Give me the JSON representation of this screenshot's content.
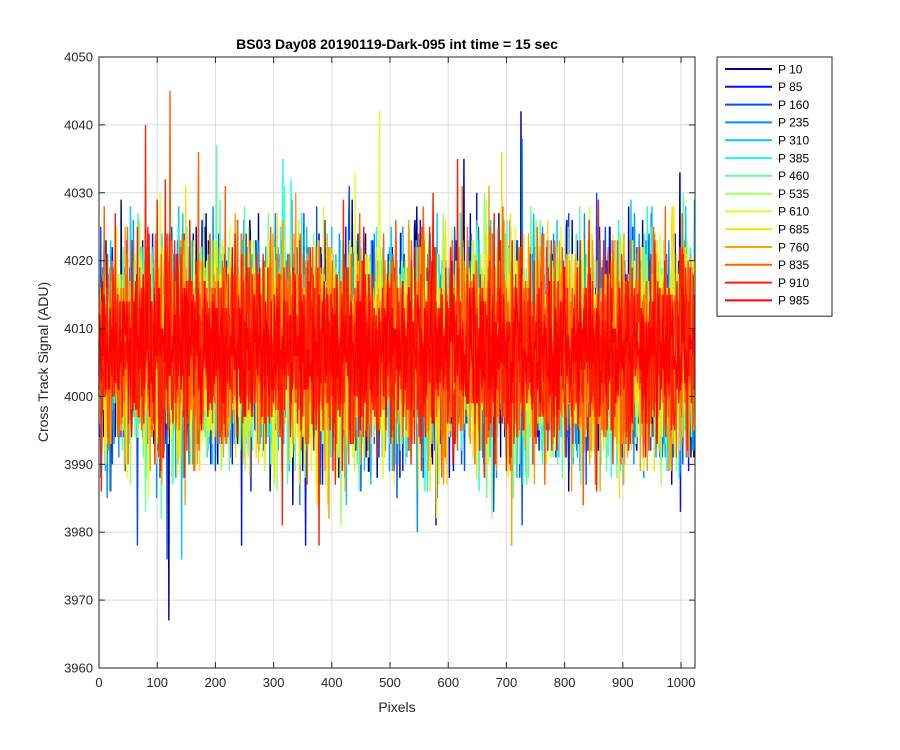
{
  "chart_data": {
    "type": "line",
    "title": "BS03 Day08 20190119-Dark-095 int time = 15 sec",
    "xlabel": "Pixels",
    "ylabel": "Cross Track Signal (ADU)",
    "xlim": [
      0,
      1024
    ],
    "ylim": [
      3960,
      4050
    ],
    "xticks": [
      0,
      100,
      200,
      300,
      400,
      500,
      600,
      700,
      800,
      900,
      1000
    ],
    "yticks": [
      3960,
      3970,
      3980,
      3990,
      4000,
      4010,
      4020,
      4030,
      4040,
      4050
    ],
    "grid": true,
    "legend_position": "outside-top-right",
    "n_points": 1024,
    "series": [
      {
        "name": "P 10",
        "color": "#00008f",
        "mean": 4007,
        "std": 8.2,
        "extremes": [
          [
            120,
            3967
          ],
          [
            725,
            4042
          ]
        ]
      },
      {
        "name": "P 85",
        "color": "#0010ff",
        "mean": 4007,
        "std": 8.0,
        "extremes": [
          [
            245,
            3978
          ],
          [
            355,
            3978
          ]
        ]
      },
      {
        "name": "P 160",
        "color": "#0050ff",
        "mean": 4007,
        "std": 8.0,
        "extremes": [
          [
            117,
            3976
          ]
        ]
      },
      {
        "name": "P 235",
        "color": "#0090ff",
        "mean": 4007,
        "std": 7.8,
        "extremes": []
      },
      {
        "name": "P 310",
        "color": "#00c8ff",
        "mean": 4007,
        "std": 7.8,
        "extremes": [
          [
            142,
            3976
          ]
        ]
      },
      {
        "name": "P 385",
        "color": "#20ffdf",
        "mean": 4007,
        "std": 7.6,
        "extremes": []
      },
      {
        "name": "P 460",
        "color": "#60ff9f",
        "mean": 4007,
        "std": 7.6,
        "extremes": []
      },
      {
        "name": "P 535",
        "color": "#9fff60",
        "mean": 4007,
        "std": 7.6,
        "extremes": []
      },
      {
        "name": "P 610",
        "color": "#dfff20",
        "mean": 4007,
        "std": 7.8,
        "extremes": [
          [
            482,
            4042
          ]
        ]
      },
      {
        "name": "P 685",
        "color": "#ffe000",
        "mean": 4007,
        "std": 7.8,
        "extremes": []
      },
      {
        "name": "P 760",
        "color": "#ffa000",
        "mean": 4007,
        "std": 7.8,
        "extremes": []
      },
      {
        "name": "P 835",
        "color": "#ff6000",
        "mean": 4007,
        "std": 8.0,
        "extremes": [
          [
            122,
            4045
          ]
        ]
      },
      {
        "name": "P 910",
        "color": "#ff2000",
        "mean": 4007,
        "std": 8.0,
        "extremes": [
          [
            80,
            4040
          ],
          [
            378,
            3978
          ]
        ]
      },
      {
        "name": "P 985",
        "color": "#ff0000",
        "mean": 4007,
        "std": 5.0,
        "extremes": []
      }
    ]
  }
}
